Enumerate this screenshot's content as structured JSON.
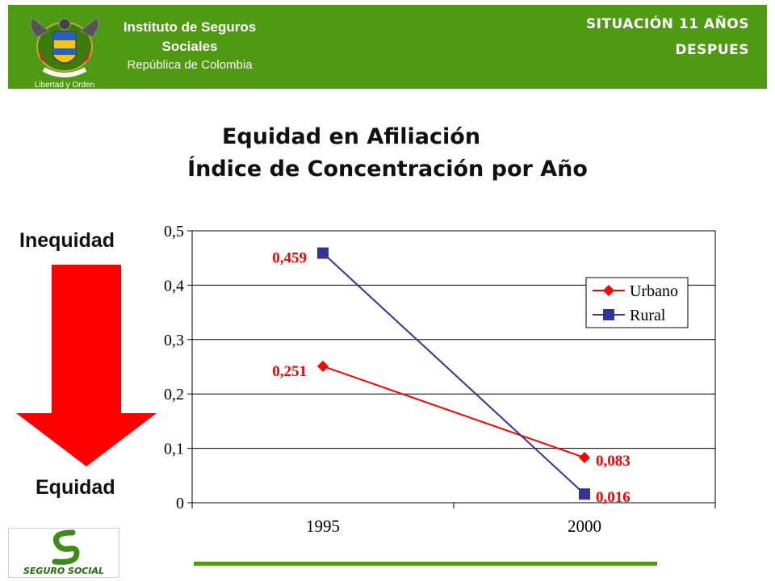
{
  "header": {
    "org_line1": "Instituto de Seguros",
    "org_line2": "Sociales",
    "org_line3": "República de Colombia",
    "crest_motto": "Libertad y Orden",
    "situation_line1": "SITUACIÓN 11 AÑOS",
    "situation_line2": "DESPUES",
    "bg_color": "#4e9a12"
  },
  "title": {
    "line1": "Equidad en Afiliación",
    "line2": "Índice de Concentración por Año"
  },
  "side": {
    "top_label": "Inequidad",
    "bottom_label": "Equidad",
    "arrow_color": "#ff0000",
    "arrow_icon": "arrow-down-icon"
  },
  "chart_data": {
    "type": "line",
    "x": [
      "1995",
      "2000"
    ],
    "series": [
      {
        "name": "Urbano",
        "values": [
          0.251,
          0.083
        ],
        "labels": [
          "0,251",
          "0,083"
        ],
        "color": "#ff0000",
        "marker": "diamond"
      },
      {
        "name": "Rural",
        "values": [
          0.459,
          0.016
        ],
        "labels": [
          "0,459",
          "0,016"
        ],
        "color": "#333399",
        "marker": "square"
      }
    ],
    "ylim": [
      0,
      0.5
    ],
    "yticks": [
      0,
      0.1,
      0.2,
      0.3,
      0.4,
      0.5
    ],
    "ytick_labels": [
      "0",
      "0,1",
      "0,2",
      "0,3",
      "0,4",
      "0,5"
    ],
    "grid": true,
    "legend": "right"
  },
  "footer": {
    "logo_text": "SEGURO SOCIAL",
    "bar_color": "#4e9a12"
  }
}
